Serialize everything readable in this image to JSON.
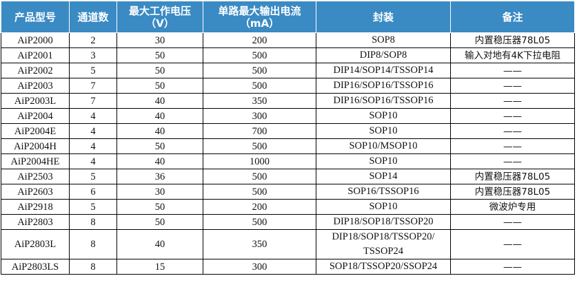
{
  "headers": {
    "model": "产品型号",
    "channels": "通道数",
    "voltage": "最大工作电压（V）",
    "current": "单路最大输出电流（mA）",
    "package": "封装",
    "notes": "备注"
  },
  "rows": [
    {
      "model": "AiP2000",
      "channels": "2",
      "voltage": "30",
      "current": "200",
      "package": "SOP8",
      "notes": "内置稳压器78L05"
    },
    {
      "model": "AiP2001",
      "channels": "3",
      "voltage": "50",
      "current": "500",
      "package": "DIP8/SOP8",
      "notes": "输入对地有4K下拉电阻"
    },
    {
      "model": "AiP2002",
      "channels": "5",
      "voltage": "50",
      "current": "500",
      "package": "DIP14/SOP14/TSSOP14",
      "notes": "——"
    },
    {
      "model": "AiP2003",
      "channels": "7",
      "voltage": "50",
      "current": "500",
      "package": "DIP16/SOP16/TSSOP16",
      "notes": "——"
    },
    {
      "model": "AiP2003L",
      "channels": "7",
      "voltage": "40",
      "current": "350",
      "package": "DIP16/SOP16/TSSOP16",
      "notes": "——"
    },
    {
      "model": "AiP2004",
      "channels": "4",
      "voltage": "40",
      "current": "300",
      "package": "SOP10",
      "notes": "——"
    },
    {
      "model": "AiP2004E",
      "channels": "4",
      "voltage": "40",
      "current": "700",
      "package": "SOP10",
      "notes": "——"
    },
    {
      "model": "AiP2004H",
      "channels": "4",
      "voltage": "50",
      "current": "500",
      "package": "SOP10/MSOP10",
      "notes": "——"
    },
    {
      "model": "AiP2004HE",
      "channels": "4",
      "voltage": "40",
      "current": "1000",
      "package": "SOP10",
      "notes": "——"
    },
    {
      "model": "AiP2503",
      "channels": "5",
      "voltage": "36",
      "current": "500",
      "package": "SOP14",
      "notes": "内置稳压器78L05"
    },
    {
      "model": "AiP2603",
      "channels": "6",
      "voltage": "30",
      "current": "500",
      "package": "SOP16/TSSOP16",
      "notes": "内置稳压器78L05"
    },
    {
      "model": "AiP2918",
      "channels": "5",
      "voltage": "50",
      "current": "200",
      "package": "SOP10",
      "notes": "微波炉专用"
    },
    {
      "model": "AiP2803",
      "channels": "8",
      "voltage": "50",
      "current": "500",
      "package": "DIP18/SOP18/TSSOP20",
      "notes": "——"
    },
    {
      "model": "AiP2803L",
      "channels": "8",
      "voltage": "40",
      "current": "350",
      "package": "DIP18/SOP18/TSSOP20/ TSSOP24",
      "notes": "——"
    },
    {
      "model": "AiP2803LS",
      "channels": "8",
      "voltage": "15",
      "current": "300",
      "package": "SOP18/TSSOP20/SSOP24",
      "notes": "——"
    }
  ]
}
